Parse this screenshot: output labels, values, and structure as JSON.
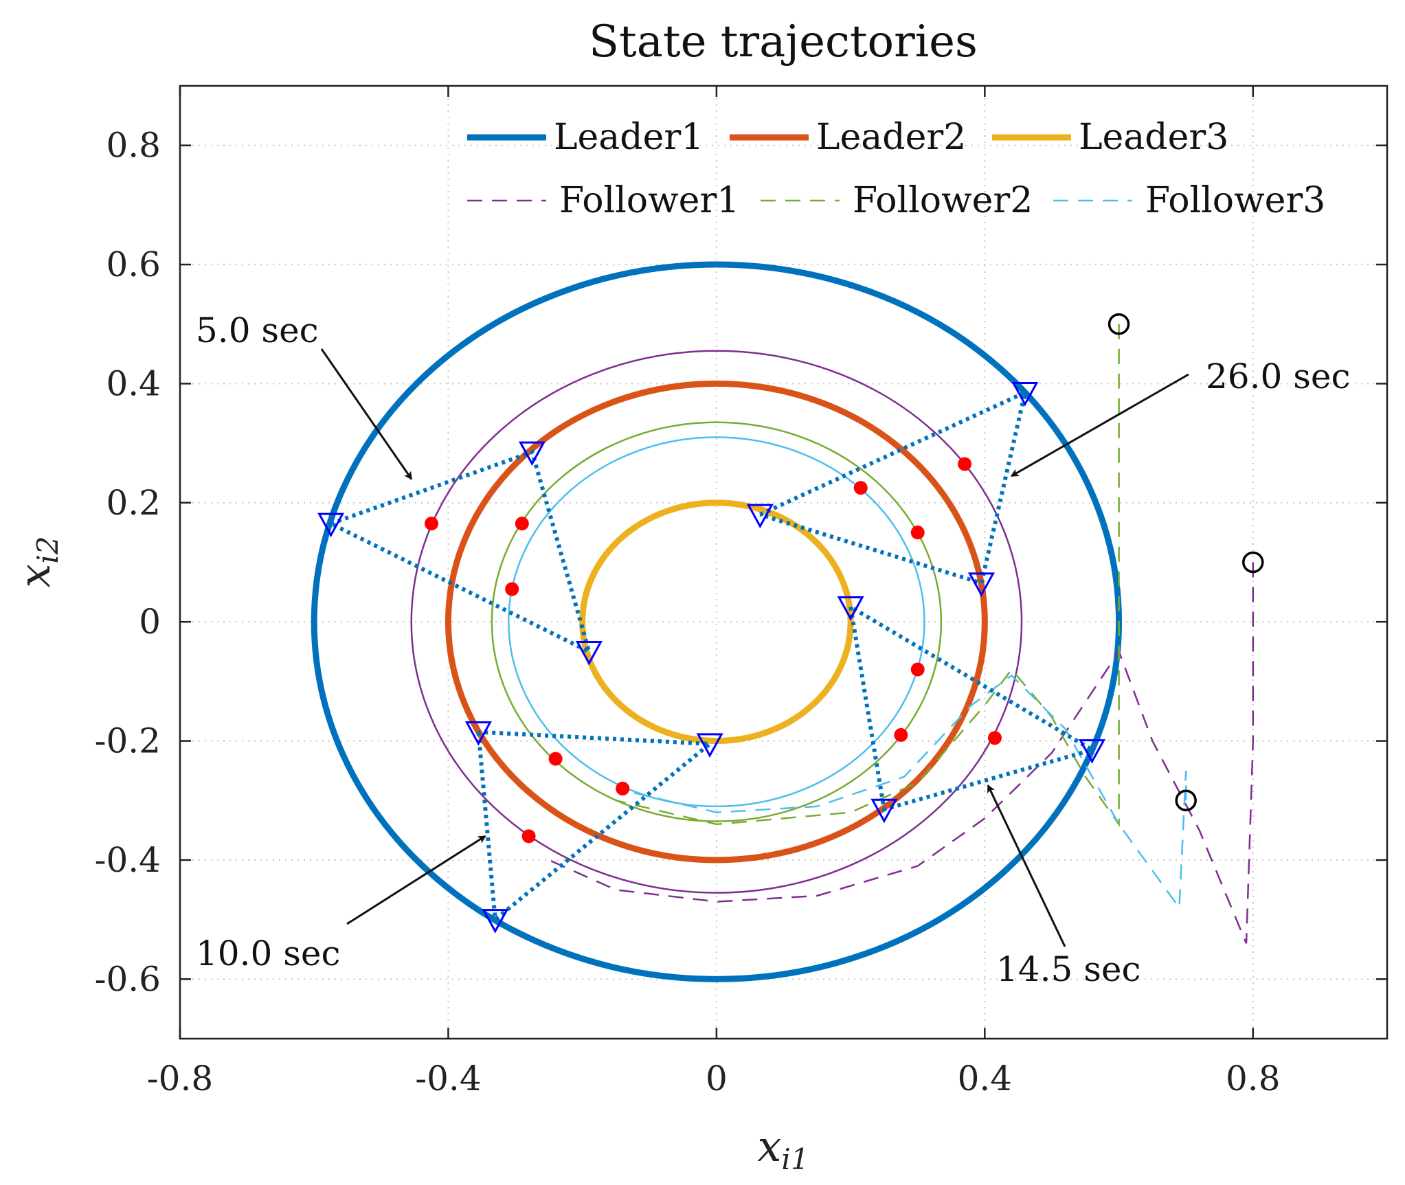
{
  "chart_data": {
    "type": "line",
    "title": "State trajectories",
    "xlabel": "x_i1",
    "ylabel": "x_i2",
    "xlabel_base": "x",
    "xlabel_sub": "i1",
    "ylabel_base": "x",
    "ylabel_sub": "i2",
    "xlim": [
      -0.8,
      1.0
    ],
    "ylim": [
      -0.7,
      0.9
    ],
    "xticks": [
      -0.8,
      -0.4,
      0,
      0.4,
      0.8
    ],
    "xtick_labels": [
      "-0.8",
      "-0.4",
      "0",
      "0.4",
      "0.8"
    ],
    "yticks": [
      -0.6,
      -0.4,
      -0.2,
      0,
      0.2,
      0.4,
      0.6,
      0.8
    ],
    "ytick_labels": [
      "-0.6",
      "-0.4",
      "-0.2",
      "0",
      "0.2",
      "0.4",
      "0.6",
      "0.8"
    ],
    "grid": true,
    "legend_position": "top",
    "colors": {
      "leader1": "#0072BD",
      "leader2": "#D95319",
      "leader3": "#EDB120",
      "follower1": "#7E2F8E",
      "follower2": "#77AC30",
      "follower3": "#4DBEEE",
      "marker_triangle": "#0000FF",
      "snapshot_line": "#0072BD",
      "red_dot": "#FF0000",
      "start_circle": "#000000"
    },
    "series": [
      {
        "name": "Leader1",
        "style": "solid-thick",
        "shape": "circle",
        "center": [
          0,
          0
        ],
        "radius_x": 0.6,
        "radius_y": 0.6
      },
      {
        "name": "Leader2",
        "style": "solid-thick",
        "shape": "circle",
        "center": [
          0,
          0
        ],
        "radius_x": 0.4,
        "radius_y": 0.4
      },
      {
        "name": "Leader3",
        "style": "solid-thick",
        "shape": "circle",
        "center": [
          0,
          0
        ],
        "radius_x": 0.2,
        "radius_y": 0.2
      },
      {
        "name": "Follower1",
        "style": "dashed",
        "start": [
          0.8,
          0.1
        ],
        "transient": [
          [
            0.8,
            0.1
          ],
          [
            0.8,
            -0.2
          ],
          [
            0.79,
            -0.54
          ],
          [
            0.72,
            -0.35
          ],
          [
            0.65,
            -0.2
          ],
          [
            0.6,
            -0.05
          ],
          [
            0.5,
            -0.22
          ],
          [
            0.4,
            -0.33
          ],
          [
            0.3,
            -0.41
          ],
          [
            0.15,
            -0.46
          ],
          [
            0.0,
            -0.47
          ],
          [
            -0.15,
            -0.45
          ],
          [
            -0.25,
            -0.4
          ]
        ],
        "limit_orbit_radius_x": 0.455,
        "limit_orbit_radius_y": 0.455
      },
      {
        "name": "Follower2",
        "style": "dashed",
        "start": [
          0.6,
          0.5
        ],
        "transient": [
          [
            0.6,
            0.5
          ],
          [
            0.6,
            0.1
          ],
          [
            0.6,
            -0.34
          ],
          [
            0.55,
            -0.26
          ],
          [
            0.5,
            -0.16
          ],
          [
            0.44,
            -0.08
          ],
          [
            0.4,
            -0.14
          ],
          [
            0.3,
            -0.27
          ],
          [
            0.2,
            -0.32
          ],
          [
            0.0,
            -0.34
          ],
          [
            -0.15,
            -0.3
          ]
        ],
        "limit_orbit_radius_x": 0.335,
        "limit_orbit_radius_y": 0.335
      },
      {
        "name": "Follower3",
        "style": "dashed",
        "start": [
          0.7,
          -0.3
        ],
        "transient": [
          [
            0.7,
            -0.3
          ],
          [
            0.7,
            -0.25
          ],
          [
            0.69,
            -0.48
          ],
          [
            0.6,
            -0.34
          ],
          [
            0.52,
            -0.18
          ],
          [
            0.44,
            -0.09
          ],
          [
            0.38,
            -0.14
          ],
          [
            0.28,
            -0.26
          ],
          [
            0.15,
            -0.31
          ],
          [
            0.0,
            -0.32
          ],
          [
            -0.15,
            -0.28
          ]
        ],
        "limit_orbit_radius_x": 0.31,
        "limit_orbit_radius_y": 0.31
      }
    ],
    "snapshots": [
      {
        "label": "5.0 sec",
        "points": [
          [
            -0.575,
            0.165
          ],
          [
            -0.275,
            0.285
          ],
          [
            -0.19,
            -0.05
          ]
        ]
      },
      {
        "label": "10.0 sec",
        "points": [
          [
            -0.355,
            -0.185
          ],
          [
            -0.33,
            -0.5
          ],
          [
            -0.01,
            -0.205
          ]
        ]
      },
      {
        "label": "14.5 sec",
        "points": [
          [
            0.2,
            0.025
          ],
          [
            0.25,
            -0.315
          ],
          [
            0.56,
            -0.215
          ]
        ]
      },
      {
        "label": "26.0 sec",
        "points": [
          [
            0.065,
            0.18
          ],
          [
            0.46,
            0.385
          ],
          [
            0.395,
            0.065
          ]
        ]
      }
    ],
    "red_dots": [
      [
        -0.425,
        0.165
      ],
      [
        -0.29,
        0.165
      ],
      [
        -0.305,
        0.055
      ],
      [
        -0.24,
        -0.23
      ],
      [
        -0.14,
        -0.28
      ],
      [
        -0.28,
        -0.36
      ],
      [
        0.215,
        0.225
      ],
      [
        0.37,
        0.265
      ],
      [
        0.3,
        0.15
      ],
      [
        0.3,
        -0.08
      ],
      [
        0.275,
        -0.19
      ],
      [
        0.415,
        -0.195
      ]
    ],
    "start_markers": [
      [
        0.6,
        0.5
      ],
      [
        0.8,
        0.1
      ],
      [
        0.7,
        -0.3
      ]
    ],
    "annotations": [
      {
        "text": "5.0 sec",
        "arrow_tip": [
          -0.455,
          0.24
        ]
      },
      {
        "text": "10.0 sec",
        "arrow_tip": [
          -0.345,
          -0.36
        ]
      },
      {
        "text": "14.5 sec",
        "arrow_tip": [
          0.405,
          -0.275
        ]
      },
      {
        "text": "26.0 sec",
        "arrow_tip": [
          0.44,
          0.245
        ]
      }
    ]
  }
}
